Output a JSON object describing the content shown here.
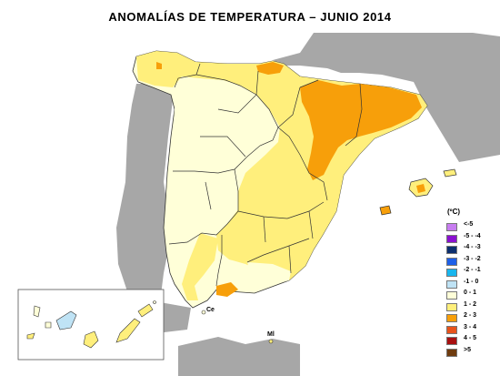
{
  "title": "ANOMALÍAS DE TEMPERATURA – JUNIO 2014",
  "legend": {
    "unit": "(ºC)",
    "items": [
      {
        "label": "<-5",
        "color": "#c77df0"
      },
      {
        "label": "-5 - -4",
        "color": "#8a10d0"
      },
      {
        "label": "-4 - -3",
        "color": "#0c2f6e"
      },
      {
        "label": "-3 - -2",
        "color": "#1e60e8"
      },
      {
        "label": "-2 - -1",
        "color": "#18b6ee"
      },
      {
        "label": "-1 - 0",
        "color": "#bfe3f5"
      },
      {
        "label": "0 - 1",
        "color": "#ffffd8"
      },
      {
        "label": "1 - 2",
        "color": "#ffef7c"
      },
      {
        "label": "2 - 3",
        "color": "#f79f0a"
      },
      {
        "label": "3 - 4",
        "color": "#e8531c"
      },
      {
        "label": "4 - 5",
        "color": "#a81010"
      },
      {
        "label": ">5",
        "color": "#6e3b0e"
      }
    ]
  },
  "cities": {
    "ceuta": "Ce",
    "melilla": "Ml"
  }
}
